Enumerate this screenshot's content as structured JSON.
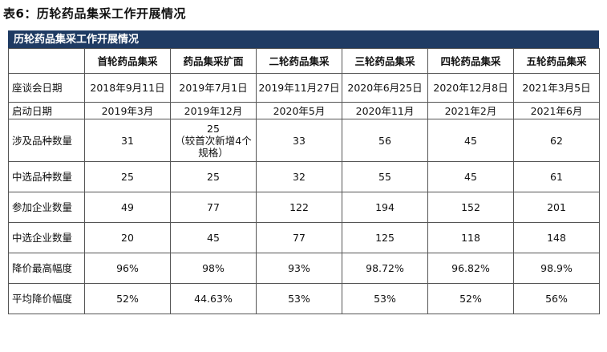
{
  "caption": "表6：历轮药品集采工作开展情况",
  "band_title": "历轮药品集采工作开展情况",
  "columns": [
    "",
    "首轮药品集采",
    "药品集采扩面",
    "二轮药品集采",
    "三轮药品集采",
    "四轮药品集采",
    "五轮药品集采"
  ],
  "rows": [
    {
      "label": "座谈会日期",
      "cells": [
        "2018年9月11日",
        "2019年7月1日",
        "2019年11月27日",
        "2020年6月25日",
        "2020年12月8日",
        "2021年3月5日"
      ]
    },
    {
      "label": "启动日期",
      "cells": [
        "2019年3月",
        "2019年12月",
        "2020年5月",
        "2020年11月",
        "2021年2月",
        "2021年6月"
      ]
    },
    {
      "label": "涉及品种数量",
      "cells": [
        "31",
        "25",
        "33",
        "56",
        "45",
        "62"
      ],
      "note": "（较首次新增4个规格）"
    },
    {
      "label": "中选品种数量",
      "cells": [
        "25",
        "25",
        "32",
        "55",
        "45",
        "61"
      ]
    },
    {
      "label": "参加企业数量",
      "cells": [
        "49",
        "77",
        "122",
        "194",
        "152",
        "201"
      ]
    },
    {
      "label": "中选企业数量",
      "cells": [
        "20",
        "45",
        "77",
        "125",
        "118",
        "148"
      ]
    },
    {
      "label": "降价最高幅度",
      "cells": [
        "96%",
        "98%",
        "93%",
        "98.72%",
        "96.82%",
        "98.9%"
      ]
    },
    {
      "label": "平均降价幅度",
      "cells": [
        "52%",
        "44.63%",
        "53%",
        "53%",
        "52%",
        "56%"
      ]
    }
  ]
}
